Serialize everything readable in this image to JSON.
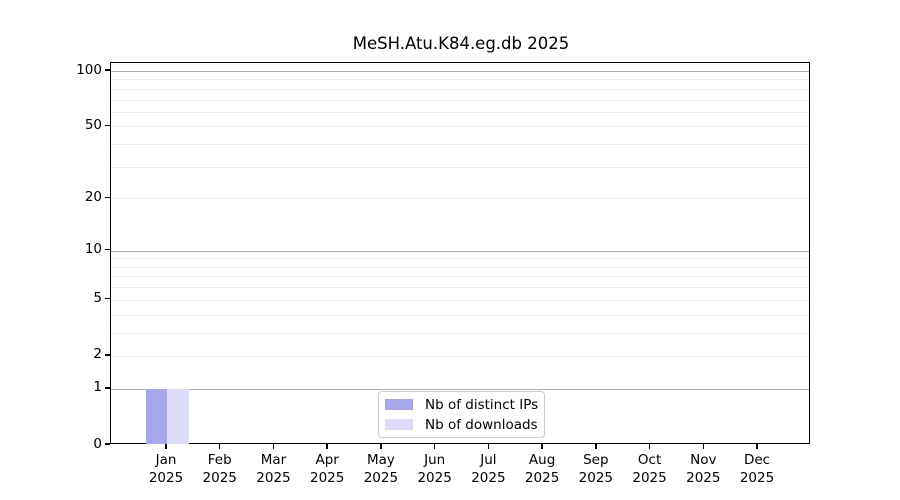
{
  "chart_data": {
    "type": "bar",
    "title": "MeSH.Atu.K84.eg.db 2025",
    "categories": [
      "Jan",
      "Feb",
      "Mar",
      "Apr",
      "May",
      "Jun",
      "Jul",
      "Aug",
      "Sep",
      "Oct",
      "Nov",
      "Dec"
    ],
    "year_label": "2025",
    "series": [
      {
        "name": "Nb of distinct IPs",
        "color": "#a7a7ee",
        "values": [
          1,
          0,
          0,
          0,
          0,
          0,
          0,
          0,
          0,
          0,
          0,
          0
        ]
      },
      {
        "name": "Nb of downloads",
        "color": "#dcdcf8",
        "values": [
          1,
          0,
          0,
          0,
          0,
          0,
          0,
          0,
          0,
          0,
          0,
          0
        ]
      }
    ],
    "yscale": "log1p",
    "yticks": [
      0,
      1,
      2,
      5,
      10,
      20,
      50,
      100
    ],
    "minor_gridlines": [
      2,
      3,
      4,
      5,
      6,
      7,
      8,
      9,
      20,
      30,
      40,
      50,
      60,
      70,
      80,
      90
    ],
    "major_gridlines": [
      1,
      10,
      100
    ],
    "ylim_top": 110,
    "legend_position": "lower center",
    "grid": "on",
    "colors": {
      "major_grid": "#b0b0b0",
      "minor_grid": "#ebebeb",
      "spine": "#000000",
      "background": "#ffffff"
    }
  }
}
